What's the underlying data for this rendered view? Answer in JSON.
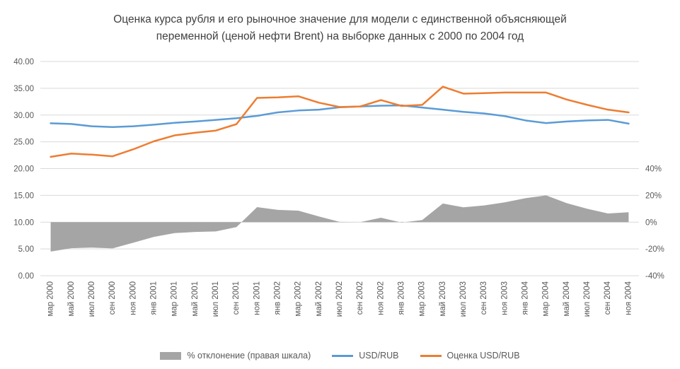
{
  "header": {
    "title_line1": "Оценка курса рубля и его рыночное значение для модели с единственной объясняющей",
    "title_line2": "переменной (ценой нефти Brent) на выборке данных с 2000 по 2004 год"
  },
  "colors": {
    "deviation_fill": "#a5a5a5",
    "usd_rub": "#5b9bd5",
    "estimate": "#ed7d31",
    "gridline": "#d9d9d9",
    "axis_text": "#595959",
    "title_text": "#404040",
    "background": "#ffffff"
  },
  "axes": {
    "left": {
      "labels": [
        "40.00",
        "35.00",
        "30.00",
        "25.00",
        "20.00",
        "15.00",
        "10.00",
        "5.00",
        "0.00"
      ],
      "values": [
        40,
        35,
        30,
        25,
        20,
        15,
        10,
        5,
        0
      ]
    },
    "right": {
      "labels": [
        "40%",
        "20%",
        "0%",
        "-20%",
        "-40%"
      ],
      "values": [
        40,
        20,
        0,
        -20,
        -40
      ]
    }
  },
  "legend": [
    {
      "label": "% отклонение (правая шкала)",
      "series": "deviation",
      "marker": "area",
      "color": "#a5a5a5"
    },
    {
      "label": "USD/RUB",
      "series": "usd_rub",
      "marker": "line",
      "color": "#5b9bd5"
    },
    {
      "label": "Оценка USD/RUB",
      "series": "estimate",
      "marker": "line",
      "color": "#ed7d31"
    }
  ],
  "chart_data": {
    "type": "line",
    "title": "Оценка курса рубля и его рыночное значение для модели с единственной объясняющей переменной (ценой нефти Brent) на выборке данных с 2000 по 2004 год",
    "categories": [
      "мар 2000",
      "май 2000",
      "июл 2000",
      "сен 2000",
      "ноя 2000",
      "янв 2001",
      "мар 2001",
      "май 2001",
      "июл 2001",
      "сен 2001",
      "ноя 2001",
      "янв 2002",
      "мар 2002",
      "май 2002",
      "июл 2002",
      "сен 2002",
      "ноя 2002",
      "янв 2003",
      "мар 2003",
      "май 2003",
      "июл 2003",
      "сен 2003",
      "ноя 2003",
      "янв 2004",
      "мар 2004",
      "май 2004",
      "июл 2004",
      "сен 2004",
      "ноя 2004"
    ],
    "series": [
      {
        "name": "% отклонение (правая шкала)",
        "type": "area",
        "axis": "right",
        "color": "#a5a5a5",
        "values": [
          -22.0,
          -19.5,
          -19.0,
          -19.6,
          -15.4,
          -11.0,
          -8.2,
          -7.3,
          -6.9,
          -3.7,
          11.2,
          9.2,
          8.6,
          4.2,
          0.2,
          0.0,
          3.3,
          -0.3,
          1.6,
          13.9,
          11.1,
          12.5,
          14.8,
          17.9,
          20.0,
          14.2,
          10.0,
          6.5,
          7.4
        ]
      },
      {
        "name": "USD/RUB",
        "type": "line",
        "axis": "left",
        "color": "#5b9bd5",
        "values": [
          28.46,
          28.33,
          27.9,
          27.75,
          27.9,
          28.2,
          28.55,
          28.8,
          29.1,
          29.4,
          29.85,
          30.5,
          30.85,
          31.0,
          31.45,
          31.6,
          31.75,
          31.8,
          31.4,
          31.0,
          30.6,
          30.3,
          29.8,
          29.0,
          28.5,
          28.8,
          29.0,
          29.1,
          28.4
        ]
      },
      {
        "name": "Оценка USD/RUB",
        "type": "line",
        "axis": "left",
        "color": "#ed7d31",
        "values": [
          22.2,
          22.8,
          22.6,
          22.3,
          23.6,
          25.1,
          26.2,
          26.7,
          27.1,
          28.3,
          33.2,
          33.3,
          33.5,
          32.3,
          31.5,
          31.6,
          32.8,
          31.7,
          31.9,
          35.3,
          34.0,
          34.1,
          34.2,
          34.2,
          34.2,
          32.9,
          31.9,
          31.0,
          30.5
        ]
      }
    ],
    "left_axis_range": [
      0,
      40
    ],
    "right_axis_range": [
      -40,
      40
    ],
    "grid": true,
    "legend_position": "bottom"
  }
}
